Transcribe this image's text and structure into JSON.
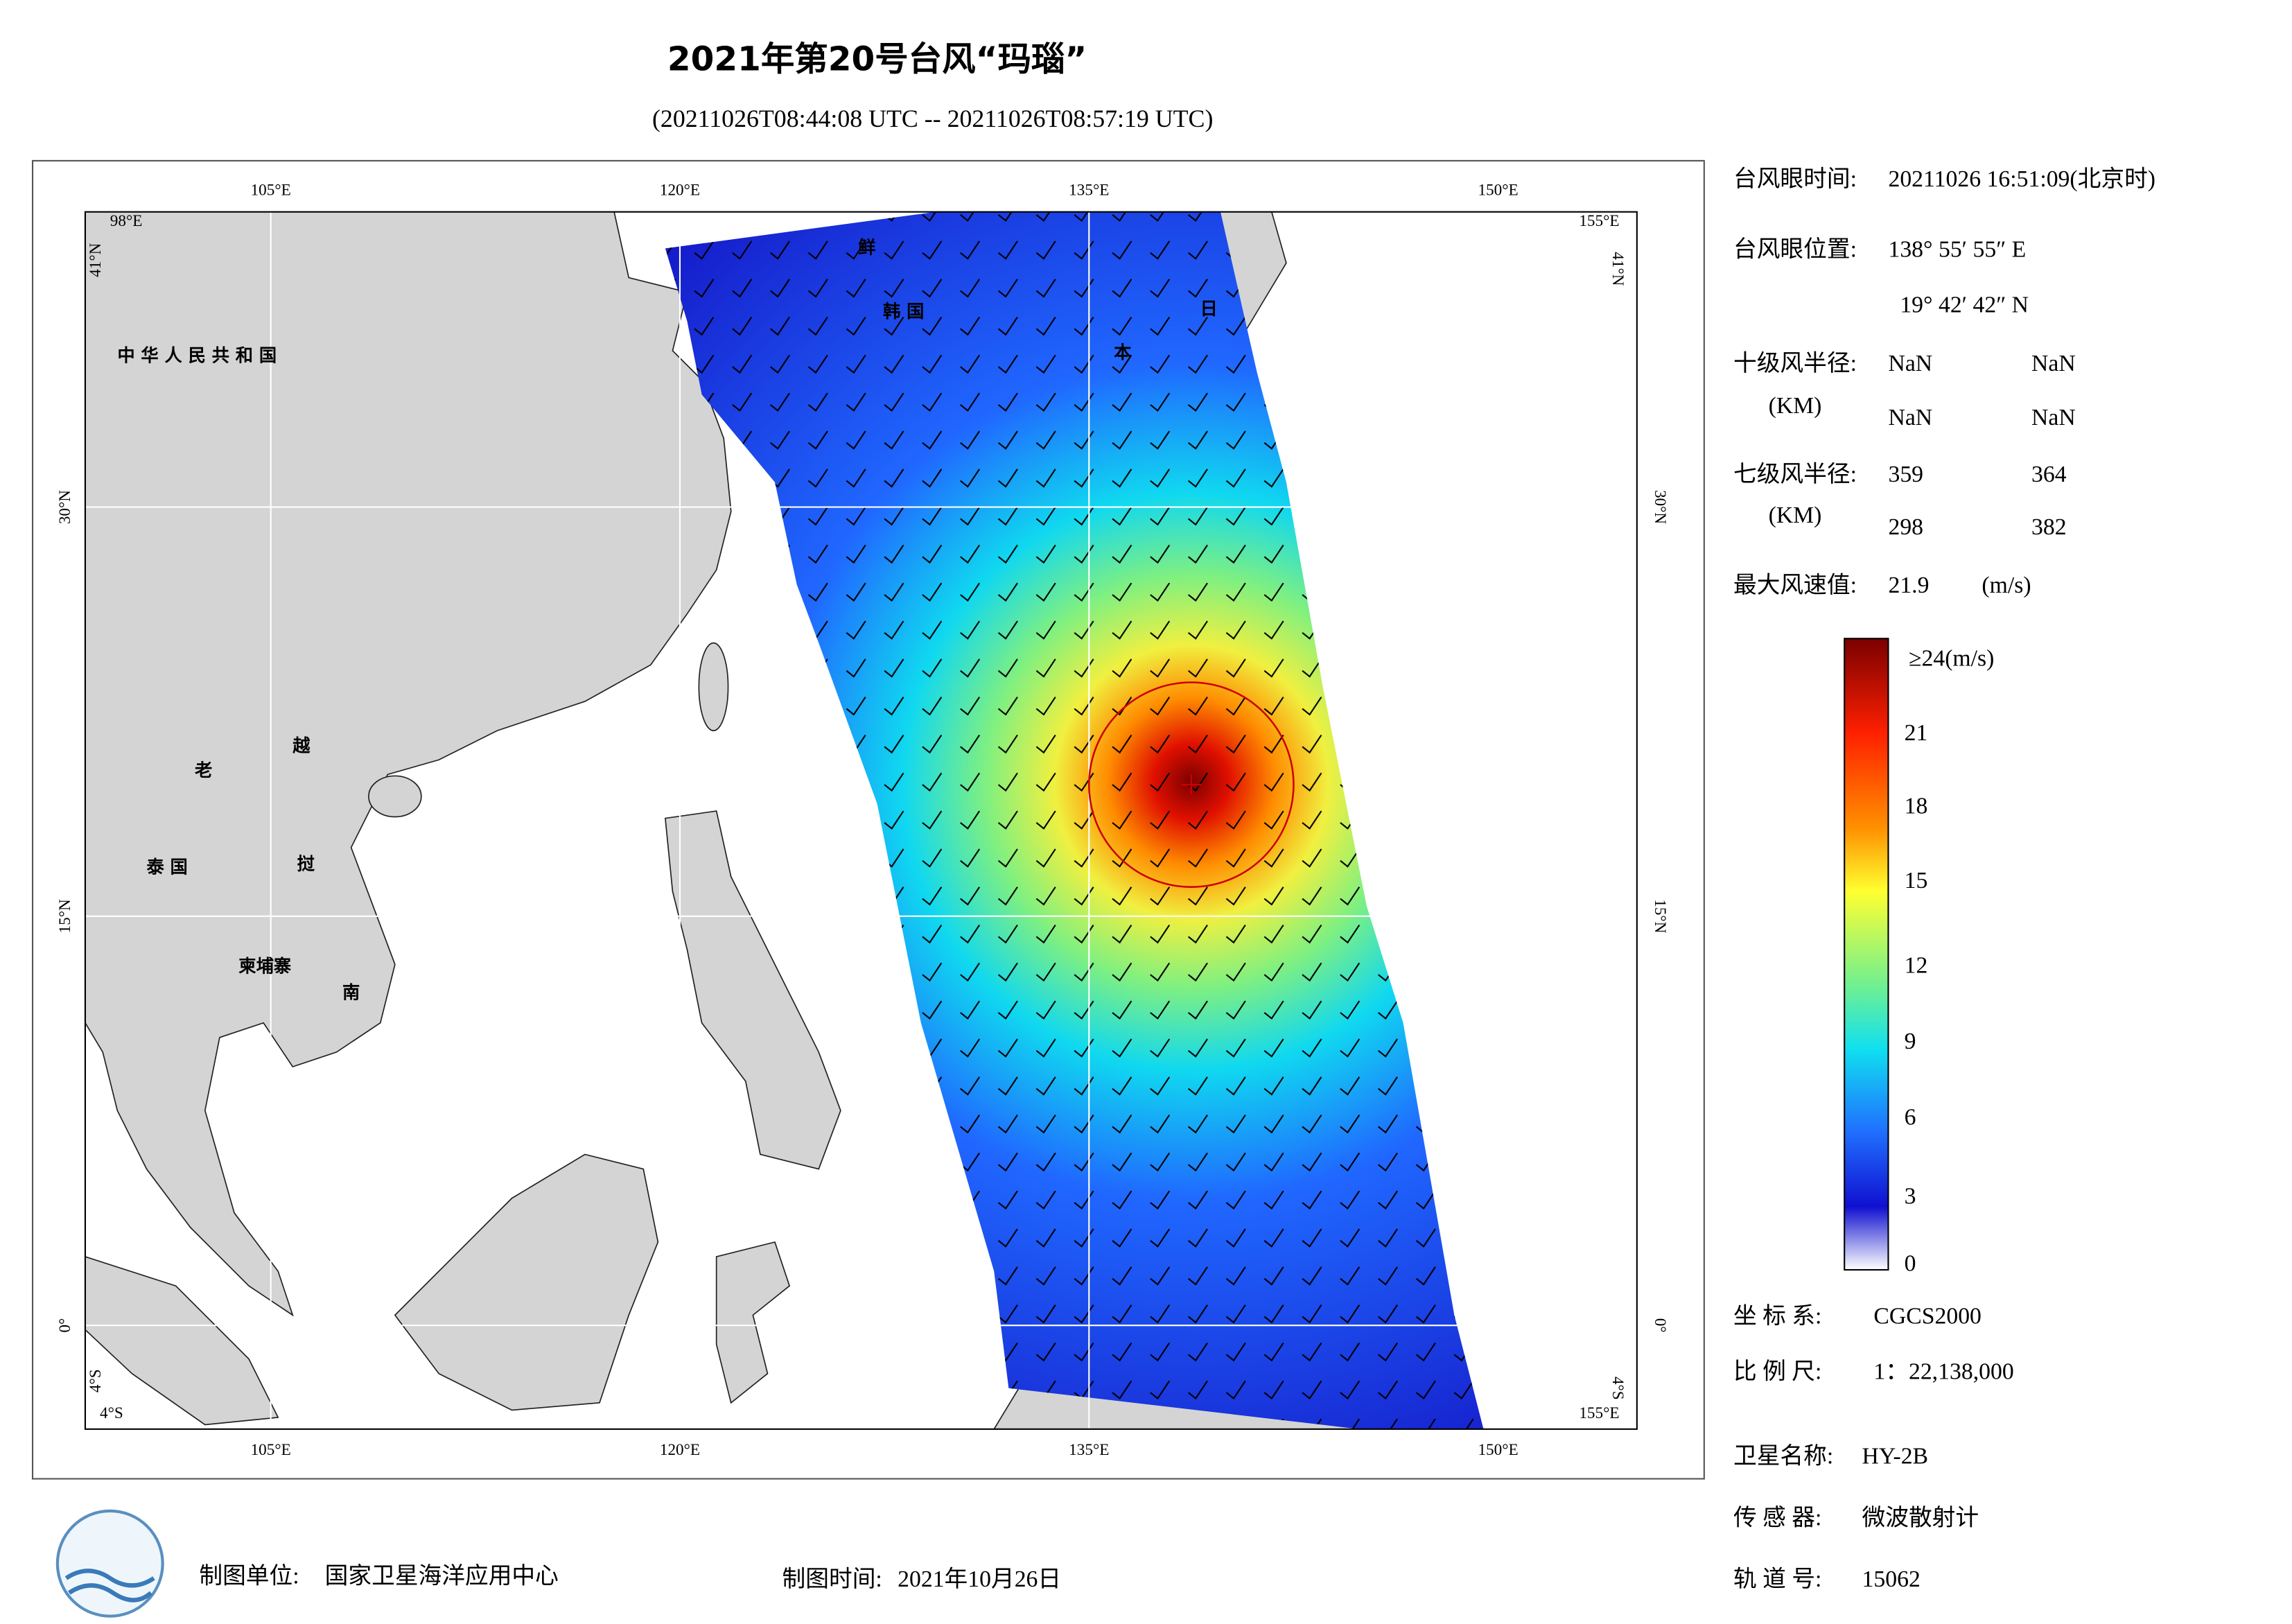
{
  "header": {
    "title": "2021年第20号台风“玛瑙”",
    "subtitle": "(20211026T08:44:08 UTC -- 20211026T08:57:19 UTC)"
  },
  "map": {
    "lon_labels_top": [
      "105°E",
      "120°E",
      "135°E",
      "150°E"
    ],
    "lon_labels_bottom": [
      "105°E",
      "120°E",
      "135°E",
      "150°E"
    ],
    "lat_labels_left": [
      "30°N",
      "15°N",
      "0°"
    ],
    "lat_labels_right": [
      "30°N",
      "15°N",
      "0°"
    ],
    "corners": {
      "top_left_lon": "98°E",
      "top_left_lat": "41°N",
      "top_right_lon": "155°E",
      "top_right_lat": "41°N",
      "bottom_left_lat": "4°S",
      "bottom_left_lon": "4°S",
      "bottom_right_lat": "4°S",
      "bottom_right_lon": "155°E"
    },
    "places": [
      "中 华 人 民 共 和 国",
      "老",
      "越",
      "泰 国",
      "挝",
      "柬埔寨",
      "南",
      "鲜",
      "韩 国",
      "日",
      "本"
    ]
  },
  "info": {
    "eye_time_label": "台风眼时间:",
    "eye_time": "20211026 16:51:09(北京时)",
    "eye_pos_label": "台风眼位置:",
    "eye_lon": "138° 55′ 55″ E",
    "eye_lat": "19° 42′ 42″ N",
    "r10_label": "十级风半径:",
    "r10_unit": "(KM)",
    "r10": [
      "NaN",
      "NaN",
      "NaN",
      "NaN"
    ],
    "r7_label": "七级风半径:",
    "r7_unit": "(KM)",
    "r7": [
      "359",
      "364",
      "298",
      "382"
    ],
    "max_label": "最大风速值:",
    "max_value": "21.9",
    "max_unit": "(m/s)",
    "crs_label": "坐 标 系:",
    "crs": "CGCS2000",
    "scale_label": "比 例 尺:",
    "scale": "1：22,138,000",
    "sat_label": "卫星名称:",
    "sat": "HY-2B",
    "sensor_label": "传 感 器:",
    "sensor": "微波散射计",
    "orbit_label": "轨 道 号:",
    "orbit": "15062"
  },
  "colorbar": {
    "labels": [
      "≥24(m/s)",
      "21",
      "18",
      "15",
      "12",
      "9",
      "6",
      "3",
      "0"
    ]
  },
  "footer": {
    "org_label": "制图单位:",
    "org": "国家卫星海洋应用中心",
    "date_label": "制图时间:",
    "date": "2021年10月26日"
  }
}
